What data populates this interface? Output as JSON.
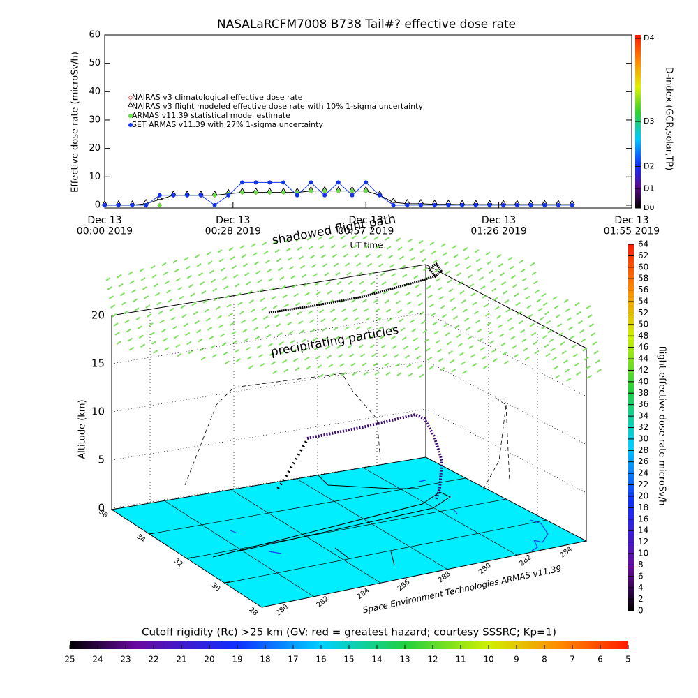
{
  "chart_data": [
    {
      "type": "line",
      "title": "NASALaRCFM7008  B738 Tail#? effective dose rate",
      "xlabel": "UT time",
      "ylabel": "Effective dose rate (microSv/h)",
      "x": [
        0,
        3,
        6,
        9,
        12,
        15,
        18,
        21,
        24,
        27,
        30,
        33,
        36,
        39,
        42,
        45,
        48,
        51,
        54,
        57,
        60,
        63,
        66,
        69,
        72,
        75,
        78,
        81,
        84,
        87,
        90,
        93,
        96,
        99,
        102
      ],
      "xlim": [
        0,
        115
      ],
      "xticks": [
        {
          "value": 0,
          "label": "Dec 13\n00:00 2019"
        },
        {
          "value": 28,
          "label": "Dec 13\n00:28 2019"
        },
        {
          "value": 57,
          "label": "Dec 13\n00:57 2019"
        },
        {
          "value": 86,
          "label": "Dec 13\n01:26 2019"
        },
        {
          "value": 115,
          "label": "Dec 13\n01:55 2019"
        }
      ],
      "ylim": [
        -1,
        60
      ],
      "yticks": [
        0,
        10,
        20,
        30,
        40,
        50,
        60
      ],
      "series": [
        {
          "name": "NAIRAS v3 climatological effective dose rate",
          "color": "#e07070",
          "marker": "diamond",
          "values": [
            0,
            0,
            0,
            0,
            0,
            3.5,
            3.5,
            3.5,
            3.5,
            4,
            4.5,
            4.5,
            4.5,
            4.5,
            4.5,
            5,
            5,
            5,
            5,
            5,
            3.5,
            0,
            0,
            0,
            0,
            0,
            0,
            0,
            0,
            0,
            0,
            0,
            0,
            0,
            0
          ]
        },
        {
          "name": "NAIRAS v3 flight modeled effective dose rate with 10% 1-sigma uncertainty",
          "color": "#000000",
          "marker": "triangle",
          "values": [
            0,
            0,
            0,
            0.5,
            2,
            3.5,
            3.5,
            3.5,
            3.5,
            4,
            4.5,
            4.5,
            4.5,
            4.5,
            4.5,
            5,
            5,
            5,
            5,
            5,
            3.5,
            1,
            0.5,
            0.5,
            0.3,
            0.3,
            0.2,
            0.2,
            0.2,
            0.2,
            0.2,
            0.2,
            0.2,
            0.2,
            0.2
          ]
        },
        {
          "name": "ARMAS v11.39 statistical model estimate",
          "color": "#66dd44",
          "marker": "circle",
          "values": [
            0,
            0,
            0,
            0,
            0,
            3.5,
            3.5,
            3.5,
            3.5,
            4,
            4.5,
            4.5,
            4.5,
            4.5,
            4.5,
            5,
            5,
            5,
            5,
            5,
            3.5,
            0,
            0,
            0,
            0,
            0,
            0,
            0,
            0,
            0,
            0,
            0,
            0,
            0,
            0
          ]
        },
        {
          "name": "SET ARMAS v11.39 with 27% 1-sigma uncertainty",
          "color": "#1133ee",
          "marker": "disc",
          "values": [
            0,
            0,
            0,
            0,
            3.5,
            3.5,
            3.5,
            3.5,
            0,
            3.5,
            8,
            8,
            8,
            8,
            3.5,
            8,
            3.5,
            8,
            3.5,
            8,
            3.5,
            0,
            0,
            0,
            0,
            0,
            0,
            0,
            0,
            0,
            0,
            0,
            0,
            0,
            0
          ]
        }
      ],
      "colorbar": {
        "label": "D-index (GCR,solar,TP)",
        "lim": [
          0,
          100
        ],
        "ticks": [
          {
            "value": 0,
            "label": "D0"
          },
          {
            "value": 11,
            "label": "D1"
          },
          {
            "value": 24,
            "label": "D2"
          },
          {
            "value": 50,
            "label": "D3"
          },
          {
            "value": 98,
            "label": "D4"
          }
        ]
      }
    },
    {
      "type": "scatter3d",
      "zlabel": "Altitude (km)",
      "zlim": [
        0,
        20
      ],
      "zticks": [
        0,
        5,
        10,
        15,
        20
      ],
      "ylim": [
        36,
        28
      ],
      "yticks": [
        36,
        34,
        32,
        30,
        28
      ],
      "x_labels": [
        "280",
        "282",
        "284",
        "286",
        "288",
        "280",
        "282",
        "284"
      ],
      "annotations": [
        "shadowed flight path",
        "precipitating particles"
      ],
      "credit": "Space Environment Technologies ARMAS v11.39",
      "colorbar": {
        "label": "flight effective dose rate microSv/h",
        "lim": [
          0,
          64
        ],
        "ticks": [
          0,
          2,
          4,
          6,
          8,
          10,
          12,
          14,
          16,
          18,
          20,
          22,
          24,
          26,
          28,
          30,
          32,
          34,
          36,
          38,
          40,
          42,
          44,
          46,
          48,
          50,
          52,
          54,
          56,
          58,
          60,
          62,
          64
        ]
      },
      "floor_colorbar": {
        "title": "Cutoff rigidity (Rc) >25 km (GV: red = greatest hazard; courtesy SSSRC; Kp=1)",
        "lim": [
          25,
          5
        ],
        "ticks": [
          25,
          24,
          23,
          22,
          21,
          20,
          19,
          18,
          17,
          16,
          15,
          14,
          13,
          12,
          11,
          10,
          9,
          8,
          7,
          6,
          5
        ]
      }
    }
  ]
}
